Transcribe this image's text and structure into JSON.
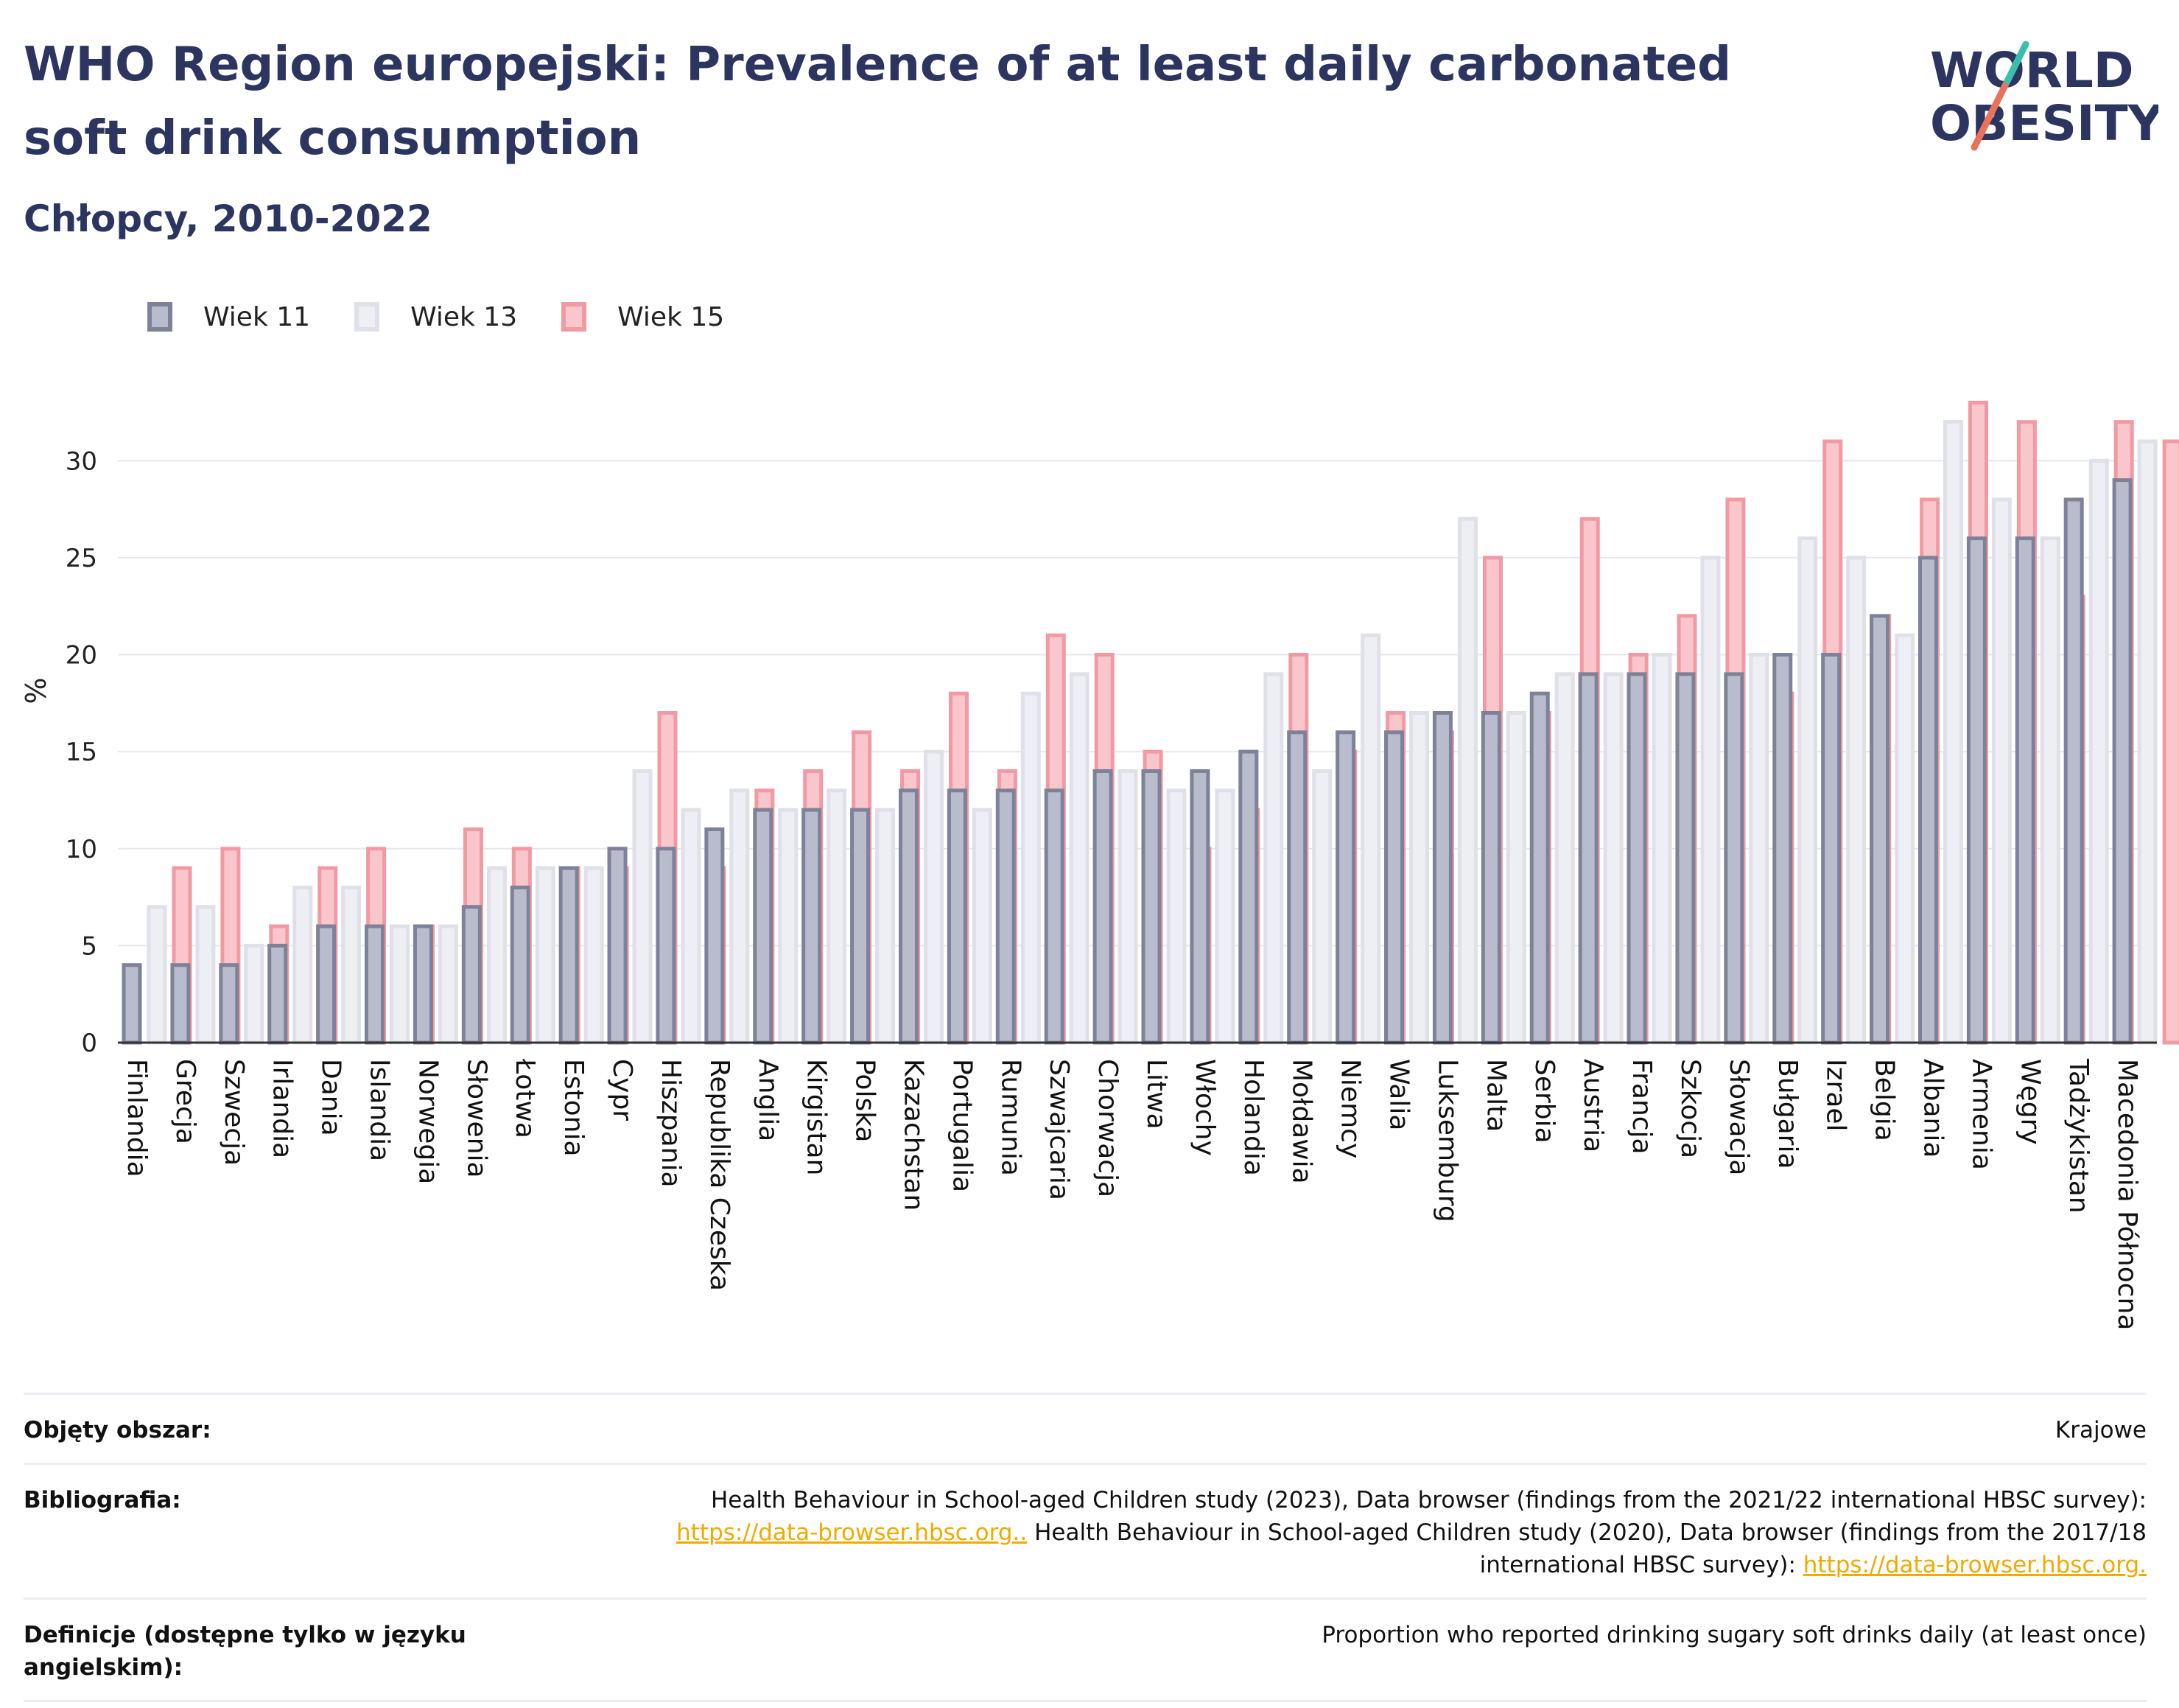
{
  "title": "WHO Region europejski: Prevalence of at least daily carbonated soft drink consumption",
  "subtitle": "Chłopcy, 2010-2022",
  "logo": {
    "line1": "WORLD",
    "line2": "OBESITY"
  },
  "colors": {
    "wiek11_fill": "#b9bccd",
    "wiek11_stroke": "#7d8299",
    "wiek13_fill": "#eeeff4",
    "wiek13_stroke": "#dfe0e8",
    "wiek15_fill": "#f8c6cb",
    "wiek15_stroke": "#f29aa3",
    "accent_teal": "#3bbfad",
    "accent_coral": "#e8735a"
  },
  "chart_data": {
    "type": "bar",
    "ylabel": "%",
    "ylim": [
      0,
      34
    ],
    "yticks": [
      0,
      5,
      10,
      15,
      20,
      25,
      30
    ],
    "grid": true,
    "legend_position": "top-left",
    "categories": [
      "Finlandia",
      "Grecja",
      "Szwecja",
      "Irlandia",
      "Dania",
      "Islandia",
      "Norwegia",
      "Słowenia",
      "Łotwa",
      "Estonia",
      "Cypr",
      "Hiszpania",
      "Republika Czeska",
      "Anglia",
      "Kirgistan",
      "Polska",
      "Kazachstan",
      "Portugalia",
      "Rumunia",
      "Szwajcaria",
      "Chorwacja",
      "Litwa",
      "Włochy",
      "Holandia",
      "Mołdawia",
      "Niemcy",
      "Walia",
      "Luksemburg",
      "Malta",
      "Serbia",
      "Austria",
      "Francja",
      "Szkocja",
      "Słowacja",
      "Bułgaria",
      "Izrael",
      "Belgia",
      "Albania",
      "Armenia",
      "Węgry",
      "Tadżykistan",
      "Macedonia Północna"
    ],
    "series": [
      {
        "name": "Wiek 11",
        "values": [
          4,
          4,
          4,
          5,
          6,
          6,
          6,
          7,
          8,
          9,
          10,
          10,
          11,
          12,
          12,
          12,
          13,
          13,
          13,
          13,
          14,
          14,
          14,
          15,
          16,
          16,
          16,
          17,
          17,
          18,
          19,
          19,
          19,
          19,
          20,
          20,
          22,
          25,
          26,
          26,
          28,
          29
        ]
      },
      {
        "name": "Wiek 13",
        "values": [
          7,
          7,
          5,
          8,
          8,
          6,
          6,
          9,
          9,
          9,
          14,
          12,
          13,
          12,
          13,
          12,
          15,
          12,
          18,
          19,
          14,
          13,
          13,
          19,
          14,
          21,
          17,
          27,
          17,
          19,
          19,
          20,
          25,
          20,
          26,
          25,
          21,
          32,
          28,
          26,
          30,
          31
        ]
      },
      {
        "name": "Wiek 15",
        "values": [
          9,
          10,
          6,
          9,
          10,
          6,
          11,
          10,
          9,
          9,
          17,
          9,
          13,
          14,
          16,
          14,
          18,
          14,
          21,
          20,
          15,
          10,
          12,
          20,
          15,
          17,
          16,
          25,
          17,
          27,
          20,
          22,
          28,
          18,
          31,
          22,
          28,
          33,
          32,
          23,
          32,
          31
        ]
      }
    ]
  },
  "footer": {
    "coverage": {
      "label": "Objęty obszar:",
      "value": "Krajowe"
    },
    "bibliography": {
      "label": "Bibliografia:",
      "line1": "Health Behaviour in School-aged Children study (2023), Data browser (findings from the 2021/22 international HBSC survey):",
      "link1": "https://data-browser.hbsc.org..",
      "line2": " Health Behaviour in School-aged Children study (2020), Data browser (findings from the 2017/18",
      "line3": "international HBSC survey): ",
      "link2": "https://data-browser.hbsc.org."
    },
    "definitions": {
      "label": "Definicje (dostępne tylko w języku angielskim):",
      "value": "Proportion who reported drinking sugary soft drinks daily (at least once)"
    }
  }
}
